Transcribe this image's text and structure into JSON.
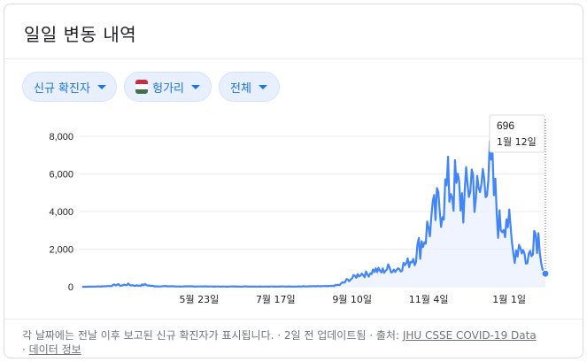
{
  "header": {
    "title": "일일 변동 내역"
  },
  "filters": {
    "metric": {
      "label": "신규 확진자",
      "icon": "chevron-down-icon"
    },
    "country": {
      "label": "헝가리",
      "icon": "hungary-flag-icon",
      "flag_colors": [
        "#cd2a3e",
        "#ffffff",
        "#436f4d"
      ]
    },
    "range": {
      "label": "전체",
      "icon": "chevron-down-icon"
    }
  },
  "colors": {
    "accent": "#1a73e8",
    "line": "#4285f4",
    "area": "#e8f0fe",
    "grid": "#ebebeb"
  },
  "tooltip": {
    "value": "696",
    "date": "1월 12일"
  },
  "chart_data": {
    "type": "line",
    "title": "",
    "xlabel": "",
    "ylabel": "",
    "ylim": [
      0,
      8000
    ],
    "yticks": [
      0,
      2000,
      4000,
      6000,
      8000
    ],
    "ytick_labels": [
      "0",
      "2,000",
      "4,000",
      "6,000",
      "8,000"
    ],
    "xtick_labels": [
      {
        "label": "5월 23일",
        "index": 84
      },
      {
        "label": "7월 17일",
        "index": 139
      },
      {
        "label": "9월 10일",
        "index": 194
      },
      {
        "label": "11월 4일",
        "index": 249
      },
      {
        "label": "1월 1일",
        "index": 307
      }
    ],
    "series": [
      {
        "name": "",
        "anchors": [
          [
            0,
            0
          ],
          [
            10,
            10
          ],
          [
            20,
            40
          ],
          [
            25,
            120
          ],
          [
            28,
            60
          ],
          [
            32,
            130
          ],
          [
            36,
            80
          ],
          [
            40,
            60
          ],
          [
            45,
            110
          ],
          [
            50,
            40
          ],
          [
            55,
            20
          ],
          [
            60,
            30
          ],
          [
            70,
            15
          ],
          [
            80,
            20
          ],
          [
            90,
            15
          ],
          [
            100,
            10
          ],
          [
            110,
            15
          ],
          [
            120,
            12
          ],
          [
            130,
            15
          ],
          [
            140,
            12
          ],
          [
            150,
            15
          ],
          [
            160,
            20
          ],
          [
            170,
            25
          ],
          [
            178,
            30
          ],
          [
            185,
            100
          ],
          [
            190,
            300
          ],
          [
            195,
            500
          ],
          [
            200,
            700
          ],
          [
            205,
            650
          ],
          [
            210,
            900
          ],
          [
            215,
            800
          ],
          [
            220,
            1000
          ],
          [
            225,
            900
          ],
          [
            230,
            1100
          ],
          [
            235,
            1300
          ],
          [
            240,
            1800
          ],
          [
            245,
            2500
          ],
          [
            250,
            3300
          ],
          [
            255,
            4000
          ],
          [
            260,
            4800
          ],
          [
            265,
            5500
          ],
          [
            270,
            5000
          ],
          [
            275,
            4500
          ],
          [
            280,
            6000
          ],
          [
            285,
            4500
          ],
          [
            290,
            6700
          ],
          [
            295,
            5500
          ],
          [
            300,
            3200
          ],
          [
            305,
            4000
          ],
          [
            310,
            1700
          ],
          [
            315,
            2400
          ],
          [
            320,
            1200
          ],
          [
            325,
            3000
          ],
          [
            329,
            2500
          ],
          [
            331,
            1000
          ],
          [
            333,
            696
          ]
        ]
      }
    ],
    "last_point": {
      "index": 333,
      "value": 696
    }
  },
  "footer": {
    "note": "각 날짜에는 전날 이후 보고된 신규 확진자가 표시됩니다. · 2일 전 업데이트됨  ·  출처:",
    "source_link": "JHU CSSE COVID-19 Data",
    "separator": "·",
    "info_link": "데이터 정보"
  }
}
